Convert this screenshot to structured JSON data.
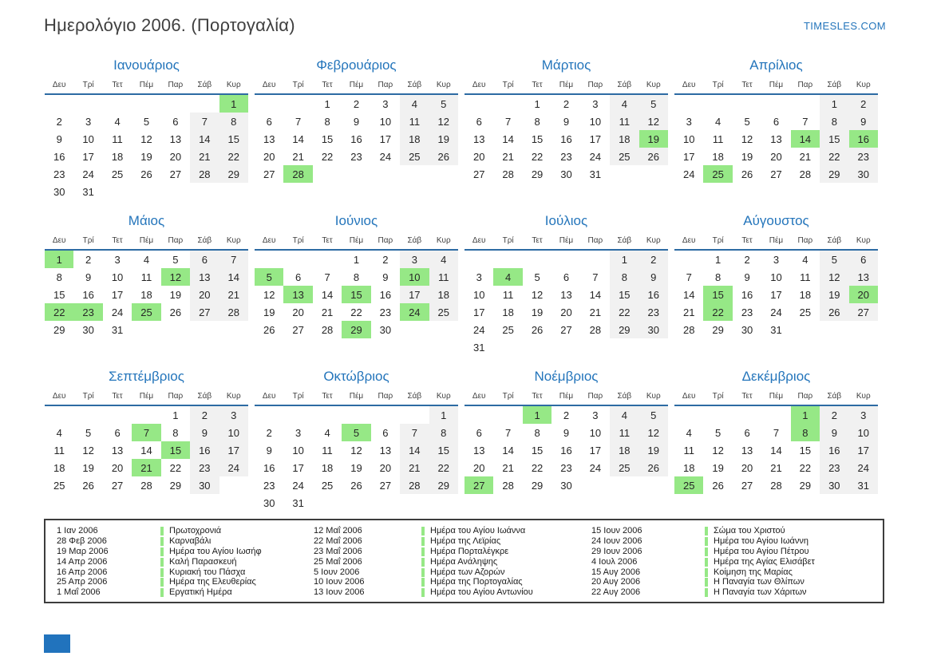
{
  "page": {
    "title": "Ημερολόγιο 2006. (Πορτογαλία)",
    "site_link": "TIMESLES.COM"
  },
  "colors": {
    "accent_blue": "#2475bb",
    "holiday_green": "#96e886",
    "weekend_gray": "#f1f1f1",
    "header_line_blue": "#2d6ba3"
  },
  "calendar": {
    "year": "2006",
    "day_headers": [
      "Δευ",
      "Τρί",
      "Τετ",
      "Πέμ",
      "Παρ",
      "Σάβ",
      "Κυρ"
    ],
    "months": [
      {
        "name": "Ιανουάριος",
        "first_dow": 7,
        "days": 31,
        "holidays": [
          1
        ]
      },
      {
        "name": "Φεβρουάριος",
        "first_dow": 3,
        "days": 28,
        "holidays": [
          28
        ]
      },
      {
        "name": "Μάρτιος",
        "first_dow": 3,
        "days": 31,
        "holidays": [
          19
        ]
      },
      {
        "name": "Απρίλιος",
        "first_dow": 6,
        "days": 30,
        "holidays": [
          14,
          16,
          25
        ]
      },
      {
        "name": "Μάιος",
        "first_dow": 1,
        "days": 31,
        "holidays": [
          1,
          12,
          22,
          23,
          25
        ]
      },
      {
        "name": "Ιούνιος",
        "first_dow": 4,
        "days": 30,
        "holidays": [
          5,
          10,
          13,
          15,
          24,
          29
        ]
      },
      {
        "name": "Ιούλιος",
        "first_dow": 6,
        "days": 31,
        "holidays": [
          4
        ]
      },
      {
        "name": "Αύγουστος",
        "first_dow": 2,
        "days": 31,
        "holidays": [
          15,
          20,
          22
        ]
      },
      {
        "name": "Σεπτέμβριος",
        "first_dow": 5,
        "days": 30,
        "holidays": [
          7,
          15,
          21
        ]
      },
      {
        "name": "Οκτώβριος",
        "first_dow": 7,
        "days": 31,
        "holidays": [
          5
        ]
      },
      {
        "name": "Νοέμβριος",
        "first_dow": 3,
        "days": 30,
        "holidays": [
          1,
          27
        ]
      },
      {
        "name": "Δεκέμβριος",
        "first_dow": 5,
        "days": 31,
        "holidays": [
          1,
          8,
          25
        ]
      }
    ]
  },
  "legend": {
    "columns": [
      [
        {
          "date": "1 Ιαν 2006",
          "name": "Πρωτοχρονιά"
        },
        {
          "date": "28 Φεβ 2006",
          "name": "Καρναβάλι"
        },
        {
          "date": "19 Μαρ 2006",
          "name": "Ημέρα του Αγίου Ιωσήφ"
        },
        {
          "date": "14 Απρ 2006",
          "name": "Καλή Παρασκευή"
        },
        {
          "date": "16 Απρ 2006",
          "name": "Κυριακή του Πάσχα"
        },
        {
          "date": "25 Απρ 2006",
          "name": "Ημέρα της Ελευθερίας"
        },
        {
          "date": "1 Μαΐ 2006",
          "name": "Εργατική Ημέρα"
        }
      ],
      [
        {
          "date": "12 Μαΐ 2006",
          "name": "Ημέρα του Αγίου Ιωάννα"
        },
        {
          "date": "22 Μαΐ 2006",
          "name": "Ημέρα της Λεϊρίας"
        },
        {
          "date": "23 Μαΐ 2006",
          "name": "Ημέρα Πορταλέγκρε"
        },
        {
          "date": "25 Μαΐ 2006",
          "name": "Ημέρα Ανάληψης"
        },
        {
          "date": "5 Ιουν 2006",
          "name": "Ημέρα των Αζορών"
        },
        {
          "date": "10 Ιουν 2006",
          "name": "Ημέρα της Πορτογαλίας"
        },
        {
          "date": "13 Ιουν 2006",
          "name": "Ημέρα του Αγίου Αντωνίου"
        }
      ],
      [
        {
          "date": "15 Ιουν 2006",
          "name": "Σώμα του Χριστού"
        },
        {
          "date": "24 Ιουν 2006",
          "name": "Ημέρα του Αγίου Ιωάννη"
        },
        {
          "date": "29 Ιουν 2006",
          "name": "Ημέρα του Αγίου Πέτρου"
        },
        {
          "date": "4 Ιουλ 2006",
          "name": "Ημέρα της Αγίας Ελισάβετ"
        },
        {
          "date": "15 Αυγ 2006",
          "name": "Κοίμηση της Μαρίας"
        },
        {
          "date": "20 Αυγ 2006",
          "name": "Η Παναγία των Θλίπων"
        },
        {
          "date": "22 Αυγ 2006",
          "name": "Η Παναγία των Χάριτων"
        }
      ]
    ]
  }
}
